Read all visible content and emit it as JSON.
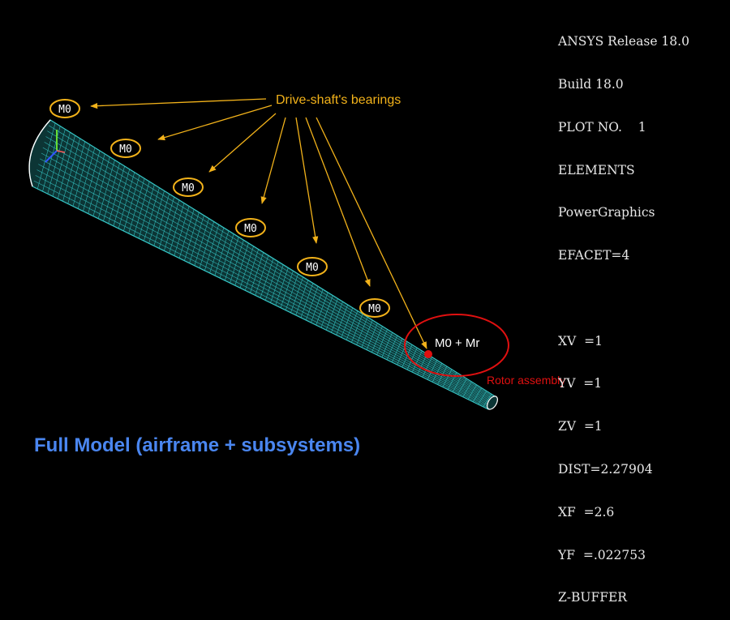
{
  "info_panel": {
    "lines": [
      "ANSYS Release 18.0",
      "Build 18.0",
      "PLOT NO.    1",
      "ELEMENTS",
      "PowerGraphics",
      "EFACET=4",
      "",
      "XV  =1",
      "YV  =1",
      "ZV  =1",
      "DIST=2.27904",
      "XF  =2.6",
      "YF  =.022753",
      "Z-BUFFER"
    ]
  },
  "annotations": {
    "bearings_label": "Drive-shaft's  bearings",
    "bearing_marker": "M0",
    "bearing_count": 6,
    "rotor_marker": "M0 + Mr",
    "rotor_label": "Rotor assembly"
  },
  "caption": "Full Model (airframe + subsystems)",
  "colors": {
    "background": "#000000",
    "mesh": "#36c6c6",
    "annotation": "#f2b21a",
    "rotor": "#e01010",
    "caption": "#4a86f0",
    "info_text": "#e8e8e8"
  }
}
